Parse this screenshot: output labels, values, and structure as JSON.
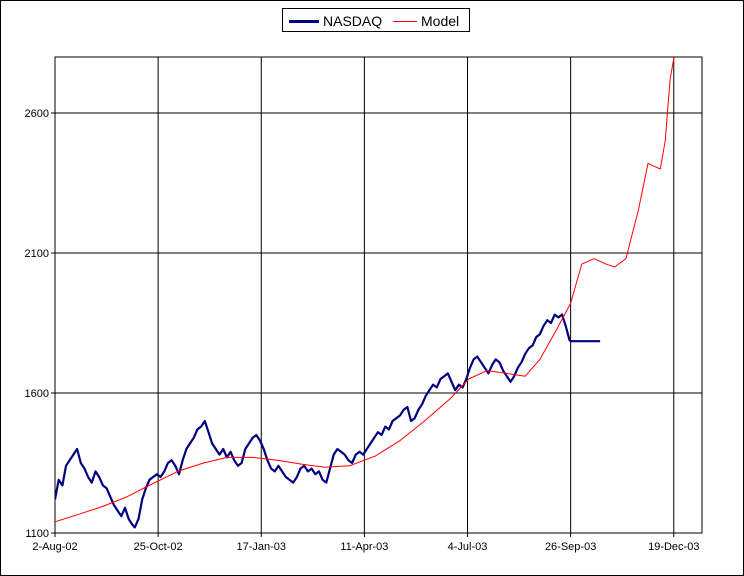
{
  "chart_data": {
    "type": "line",
    "title": "",
    "xlabel": "",
    "ylabel": "",
    "ylim": [
      1100,
      2800
    ],
    "yticks": [
      1100,
      1600,
      2100,
      2600
    ],
    "xlim": [
      "2002-08-02",
      "2004-01-11"
    ],
    "xticks": [
      {
        "date": "2002-08-02",
        "label": "2-Aug-02"
      },
      {
        "date": "2002-10-25",
        "label": "25-Oct-02"
      },
      {
        "date": "2003-01-17",
        "label": "17-Jan-03"
      },
      {
        "date": "2003-04-11",
        "label": "11-Apr-03"
      },
      {
        "date": "2003-07-04",
        "label": "4-Jul-03"
      },
      {
        "date": "2003-09-26",
        "label": "26-Sep-03"
      },
      {
        "date": "2003-12-19",
        "label": "19-Dec-03"
      }
    ],
    "grid": true,
    "legend_position": "top-center",
    "series": [
      {
        "name": "NASDAQ",
        "color": "#000080",
        "points": [
          [
            "2002-08-02",
            1220
          ],
          [
            "2002-08-05",
            1290
          ],
          [
            "2002-08-08",
            1270
          ],
          [
            "2002-08-11",
            1340
          ],
          [
            "2002-08-14",
            1360
          ],
          [
            "2002-08-17",
            1380
          ],
          [
            "2002-08-20",
            1400
          ],
          [
            "2002-08-23",
            1350
          ],
          [
            "2002-08-26",
            1330
          ],
          [
            "2002-08-29",
            1300
          ],
          [
            "2002-09-01",
            1280
          ],
          [
            "2002-09-04",
            1320
          ],
          [
            "2002-09-07",
            1300
          ],
          [
            "2002-09-10",
            1270
          ],
          [
            "2002-09-13",
            1260
          ],
          [
            "2002-09-16",
            1230
          ],
          [
            "2002-09-19",
            1200
          ],
          [
            "2002-09-22",
            1180
          ],
          [
            "2002-09-25",
            1160
          ],
          [
            "2002-09-28",
            1190
          ],
          [
            "2002-10-01",
            1150
          ],
          [
            "2002-10-04",
            1130
          ],
          [
            "2002-10-06",
            1120
          ],
          [
            "2002-10-09",
            1150
          ],
          [
            "2002-10-12",
            1220
          ],
          [
            "2002-10-15",
            1260
          ],
          [
            "2002-10-18",
            1290
          ],
          [
            "2002-10-21",
            1300
          ],
          [
            "2002-10-24",
            1310
          ],
          [
            "2002-10-27",
            1300
          ],
          [
            "2002-10-30",
            1320
          ],
          [
            "2002-11-02",
            1350
          ],
          [
            "2002-11-05",
            1360
          ],
          [
            "2002-11-08",
            1340
          ],
          [
            "2002-11-11",
            1310
          ],
          [
            "2002-11-14",
            1360
          ],
          [
            "2002-11-17",
            1400
          ],
          [
            "2002-11-20",
            1420
          ],
          [
            "2002-11-23",
            1440
          ],
          [
            "2002-11-26",
            1470
          ],
          [
            "2002-11-29",
            1480
          ],
          [
            "2002-12-02",
            1500
          ],
          [
            "2002-12-05",
            1460
          ],
          [
            "2002-12-08",
            1420
          ],
          [
            "2002-12-11",
            1400
          ],
          [
            "2002-12-14",
            1380
          ],
          [
            "2002-12-17",
            1400
          ],
          [
            "2002-12-20",
            1370
          ],
          [
            "2002-12-23",
            1390
          ],
          [
            "2002-12-26",
            1360
          ],
          [
            "2002-12-29",
            1340
          ],
          [
            "2003-01-01",
            1350
          ],
          [
            "2003-01-04",
            1400
          ],
          [
            "2003-01-07",
            1420
          ],
          [
            "2003-01-10",
            1440
          ],
          [
            "2003-01-13",
            1450
          ],
          [
            "2003-01-16",
            1430
          ],
          [
            "2003-01-19",
            1400
          ],
          [
            "2003-01-22",
            1360
          ],
          [
            "2003-01-25",
            1330
          ],
          [
            "2003-01-28",
            1320
          ],
          [
            "2003-01-31",
            1340
          ],
          [
            "2003-02-03",
            1320
          ],
          [
            "2003-02-06",
            1300
          ],
          [
            "2003-02-09",
            1290
          ],
          [
            "2003-02-12",
            1280
          ],
          [
            "2003-02-15",
            1300
          ],
          [
            "2003-02-18",
            1330
          ],
          [
            "2003-02-21",
            1340
          ],
          [
            "2003-02-24",
            1320
          ],
          [
            "2003-02-27",
            1330
          ],
          [
            "2003-03-02",
            1310
          ],
          [
            "2003-03-05",
            1320
          ],
          [
            "2003-03-08",
            1290
          ],
          [
            "2003-03-11",
            1280
          ],
          [
            "2003-03-14",
            1330
          ],
          [
            "2003-03-17",
            1380
          ],
          [
            "2003-03-20",
            1400
          ],
          [
            "2003-03-23",
            1390
          ],
          [
            "2003-03-26",
            1380
          ],
          [
            "2003-03-29",
            1360
          ],
          [
            "2003-04-01",
            1350
          ],
          [
            "2003-04-04",
            1380
          ],
          [
            "2003-04-07",
            1390
          ],
          [
            "2003-04-10",
            1380
          ],
          [
            "2003-04-13",
            1400
          ],
          [
            "2003-04-16",
            1420
          ],
          [
            "2003-04-19",
            1440
          ],
          [
            "2003-04-22",
            1460
          ],
          [
            "2003-04-25",
            1450
          ],
          [
            "2003-04-28",
            1480
          ],
          [
            "2003-05-01",
            1470
          ],
          [
            "2003-05-04",
            1500
          ],
          [
            "2003-05-07",
            1510
          ],
          [
            "2003-05-10",
            1520
          ],
          [
            "2003-05-13",
            1540
          ],
          [
            "2003-05-16",
            1550
          ],
          [
            "2003-05-19",
            1500
          ],
          [
            "2003-05-22",
            1510
          ],
          [
            "2003-05-25",
            1540
          ],
          [
            "2003-05-28",
            1560
          ],
          [
            "2003-05-31",
            1590
          ],
          [
            "2003-06-03",
            1610
          ],
          [
            "2003-06-06",
            1630
          ],
          [
            "2003-06-09",
            1620
          ],
          [
            "2003-06-12",
            1650
          ],
          [
            "2003-06-15",
            1660
          ],
          [
            "2003-06-18",
            1670
          ],
          [
            "2003-06-21",
            1640
          ],
          [
            "2003-06-24",
            1610
          ],
          [
            "2003-06-27",
            1630
          ],
          [
            "2003-06-30",
            1620
          ],
          [
            "2003-07-03",
            1650
          ],
          [
            "2003-07-06",
            1690
          ],
          [
            "2003-07-09",
            1720
          ],
          [
            "2003-07-12",
            1730
          ],
          [
            "2003-07-15",
            1710
          ],
          [
            "2003-07-18",
            1690
          ],
          [
            "2003-07-21",
            1670
          ],
          [
            "2003-07-24",
            1700
          ],
          [
            "2003-07-27",
            1720
          ],
          [
            "2003-07-30",
            1710
          ],
          [
            "2003-08-02",
            1680
          ],
          [
            "2003-08-05",
            1660
          ],
          [
            "2003-08-08",
            1640
          ],
          [
            "2003-08-11",
            1660
          ],
          [
            "2003-08-14",
            1690
          ],
          [
            "2003-08-17",
            1710
          ],
          [
            "2003-08-20",
            1740
          ],
          [
            "2003-08-23",
            1760
          ],
          [
            "2003-08-26",
            1770
          ],
          [
            "2003-08-29",
            1800
          ],
          [
            "2003-09-01",
            1810
          ],
          [
            "2003-09-04",
            1840
          ],
          [
            "2003-09-07",
            1860
          ],
          [
            "2003-09-10",
            1850
          ],
          [
            "2003-09-13",
            1880
          ],
          [
            "2003-09-16",
            1870
          ],
          [
            "2003-09-19",
            1880
          ],
          [
            "2003-09-22",
            1840
          ],
          [
            "2003-09-25",
            1790
          ],
          [
            "2003-09-26",
            1785
          ],
          [
            "2003-10-20",
            1785
          ]
        ]
      },
      {
        "name": "Model",
        "color": "#ff0000",
        "points": [
          [
            "2002-08-02",
            1140
          ],
          [
            "2002-08-20",
            1165
          ],
          [
            "2002-09-10",
            1195
          ],
          [
            "2002-09-30",
            1230
          ],
          [
            "2002-10-20",
            1275
          ],
          [
            "2002-11-10",
            1320
          ],
          [
            "2002-12-01",
            1350
          ],
          [
            "2002-12-20",
            1370
          ],
          [
            "2003-01-10",
            1370
          ],
          [
            "2003-01-30",
            1360
          ],
          [
            "2003-02-20",
            1345
          ],
          [
            "2003-03-10",
            1335
          ],
          [
            "2003-03-30",
            1340
          ],
          [
            "2003-04-20",
            1375
          ],
          [
            "2003-05-10",
            1430
          ],
          [
            "2003-05-30",
            1500
          ],
          [
            "2003-06-20",
            1580
          ],
          [
            "2003-07-05",
            1650
          ],
          [
            "2003-07-20",
            1680
          ],
          [
            "2003-08-05",
            1670
          ],
          [
            "2003-08-20",
            1660
          ],
          [
            "2003-09-01",
            1720
          ],
          [
            "2003-09-15",
            1830
          ],
          [
            "2003-09-26",
            1920
          ],
          [
            "2003-10-05",
            2060
          ],
          [
            "2003-10-15",
            2080
          ],
          [
            "2003-10-25",
            2060
          ],
          [
            "2003-11-01",
            2050
          ],
          [
            "2003-11-10",
            2080
          ],
          [
            "2003-11-20",
            2250
          ],
          [
            "2003-11-28",
            2420
          ],
          [
            "2003-12-03",
            2410
          ],
          [
            "2003-12-08",
            2400
          ],
          [
            "2003-12-12",
            2500
          ],
          [
            "2003-12-16",
            2720
          ],
          [
            "2003-12-20",
            2820
          ]
        ]
      }
    ]
  }
}
